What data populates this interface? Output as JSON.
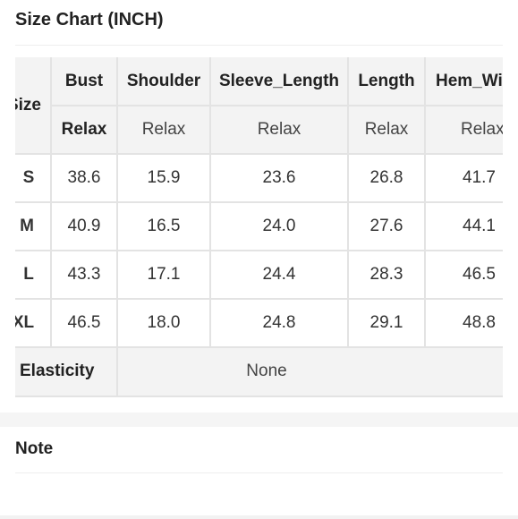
{
  "page": {
    "title": "Size Chart (INCH)",
    "note_title": "Note"
  },
  "table": {
    "size_header": "Size",
    "columns": [
      "Bust",
      "Shoulder",
      "Sleeve_Length",
      "Length",
      "Hem_Width"
    ],
    "fit_row": [
      "Relax",
      "Relax",
      "Relax",
      "Relax",
      "Relax"
    ],
    "rows": [
      {
        "size": "S",
        "values": [
          "38.6",
          "15.9",
          "23.6",
          "26.8",
          "41.7"
        ]
      },
      {
        "size": "M",
        "values": [
          "40.9",
          "16.5",
          "24.0",
          "27.6",
          "44.1"
        ]
      },
      {
        "size": "L",
        "values": [
          "43.3",
          "17.1",
          "24.4",
          "28.3",
          "46.5"
        ]
      },
      {
        "size": "XL",
        "values": [
          "46.5",
          "18.0",
          "24.8",
          "29.1",
          "48.8"
        ]
      }
    ],
    "elasticity_label": "Elasticity",
    "elasticity_value": "None"
  },
  "colors": {
    "header_bg": "#f3f3f3",
    "grid_line": "#e3e3e3",
    "text": "#222222"
  }
}
